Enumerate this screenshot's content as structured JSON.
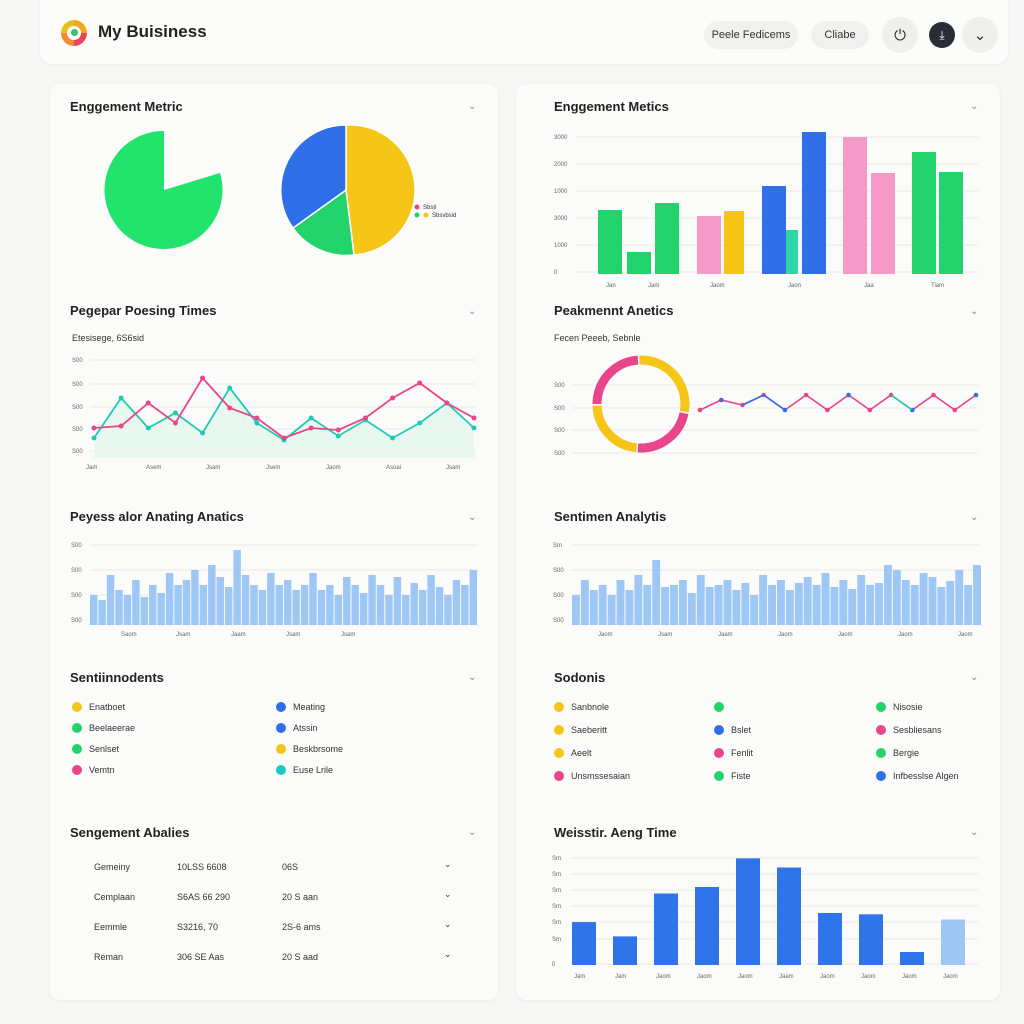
{
  "header": {
    "brand": "My Buisiness",
    "btn1": "Peele Fedicems",
    "btn2": "Cliabe",
    "icon1": "plug-icon",
    "icon2": "download-icon",
    "icon3": "chevron-down-icon"
  },
  "left": {
    "engagement": {
      "title": "Enggement Metric",
      "legend": [
        "Sbsti",
        "Sbsvbsid"
      ]
    },
    "posting": {
      "title": "Pegepar Poesing Times",
      "subtitle": "Etesisege, 6S6sid",
      "yticks": [
        "S00",
        "S00",
        "S00",
        "S00",
        "S00"
      ],
      "xticks": [
        "Jam",
        "Asem",
        "Jsam",
        "Jsem",
        "Jaom",
        "Asoai",
        "Jsam"
      ]
    },
    "anating": {
      "title": "Peyess alor Anating Anatics",
      "yticks": [
        "S00",
        "S00",
        "S00",
        "S00"
      ],
      "xticks": [
        "Saom",
        "Jsam",
        "Jaam",
        "Jsam",
        "Jsam"
      ]
    },
    "senti": {
      "title": "Sentiinnodents",
      "items": [
        {
          "label": "Enatboet",
          "color": "#f5c518"
        },
        {
          "label": "Meating",
          "color": "#2f6fe8"
        },
        {
          "label": "Beelaeerae",
          "color": "#22d36b"
        },
        {
          "label": "Atssin",
          "color": "#2f6fe8"
        },
        {
          "label": "Senlset",
          "color": "#22d36b"
        },
        {
          "label": "Beskbrsome",
          "color": "#f5c518"
        },
        {
          "label": "Vemtn",
          "color": "#e8458a"
        },
        {
          "label": "Euse Lrile",
          "color": "#1dc9c0"
        }
      ]
    },
    "table": {
      "title": "Sengement Abalies",
      "rows": [
        [
          "Gemeiny",
          "10LSS 6608",
          "06S"
        ],
        [
          "Cemplaan",
          "S6AS 66 290",
          "20 S aan"
        ],
        [
          "Eemmle",
          "S3216, 70",
          "2S-6 ams"
        ],
        [
          "Reman",
          "306 SE Aas",
          "20 S aad"
        ]
      ]
    }
  },
  "right": {
    "engagement": {
      "title": "Enggement Metics",
      "yticks": [
        "3000",
        "2000",
        "1000",
        "3000",
        "1000",
        "0"
      ],
      "xticks": [
        "Jan",
        "Jam",
        "Jaom",
        "Jaon",
        "Jaa",
        "Tiam"
      ]
    },
    "peak": {
      "title": "Peakmennt Anetics",
      "subtitle": "Fecen Peeeb, Sebnle",
      "yticks": [
        "S00",
        "S00",
        "S00",
        "S00"
      ]
    },
    "sentiment": {
      "title": "Sentimen Analytis",
      "yticks": [
        "Sm",
        "S00",
        "S00",
        "S00"
      ],
      "xticks": [
        "Jaom",
        "Jsam",
        "Jaam",
        "Jaom",
        "Jaom",
        "Jaom",
        "Jaom"
      ]
    },
    "sodonis": {
      "title": "Sodonis",
      "items": [
        {
          "label": "Sanbnole",
          "color": "#f5c518"
        },
        {
          "label": "",
          "color": "#22d36b"
        },
        {
          "label": "Nisosie",
          "color": "#22d36b"
        },
        {
          "label": "Saeberitt",
          "color": "#f5c518"
        },
        {
          "label": "Bslet",
          "color": "#2f6fe8"
        },
        {
          "label": "Sesbliesans",
          "color": "#e8458a"
        },
        {
          "label": "Aeelt",
          "color": "#f5c518"
        },
        {
          "label": "Fenlit",
          "color": "#e8458a"
        },
        {
          "label": "Bergie",
          "color": "#22d36b"
        },
        {
          "label": "Unsmssesaian",
          "color": "#e8458a"
        },
        {
          "label": "Fiste",
          "color": "#22d36b"
        },
        {
          "label": "Infbesslse Algen",
          "color": "#2f6fe8"
        }
      ]
    },
    "time": {
      "title": "Weisstir. Aeng Time",
      "yticks": [
        "Sm",
        "Sm",
        "Sm",
        "Sm",
        "Sm",
        "Sm",
        "0"
      ],
      "xticks": [
        "Jam",
        "Jam",
        "Jaom",
        "Jaom",
        "Jaom",
        "Jaam",
        "Jaom",
        "Jaom",
        "Jaom",
        "Jaom"
      ]
    }
  },
  "chart_data": [
    {
      "type": "pie",
      "title": "Enggement Metric",
      "slices": [
        {
          "value": 0.85,
          "color": "#22e36b"
        }
      ],
      "note": "single pie with missing wedge"
    },
    {
      "type": "pie",
      "title": "",
      "slices": [
        {
          "label": "Sbsti",
          "value": 50,
          "color": "#f5c518"
        },
        {
          "label": "Sbsvbsid",
          "value": 20,
          "color": "#22d36b"
        },
        {
          "value": 30,
          "color": "#2f6fe8"
        }
      ]
    },
    {
      "type": "bar",
      "title": "Enggement Metics",
      "series": [
        {
          "values": [
            68,
            22,
            71,
            0,
            0,
            0,
            0
          ],
          "color": "#22d36b"
        },
        {
          "values": [
            0,
            0,
            0,
            58,
            63,
            0,
            0
          ],
          "color": "#f5a1c8"
        }
      ]
    },
    {
      "type": "line",
      "title": "Pegepar Poesing Times",
      "series": [
        {
          "values": [
            20,
            60,
            30,
            45,
            25,
            70,
            35,
            18,
            40,
            22,
            38,
            20,
            35,
            55,
            30
          ],
          "color": "#22c9b7"
        },
        {
          "values": [
            30,
            32,
            55,
            35,
            80,
            50,
            40,
            20,
            30,
            28,
            40,
            60,
            75,
            55,
            40
          ],
          "color": "#e8458a"
        }
      ]
    },
    {
      "type": "bar",
      "title": "Peyess alor Anating Anatics",
      "values": [
        30,
        25,
        50,
        35,
        30,
        45,
        28,
        40,
        32,
        52,
        40,
        45,
        55,
        40,
        60,
        48,
        38,
        75,
        50,
        40,
        35,
        52,
        40,
        45,
        35,
        40,
        52,
        35,
        40,
        30,
        48,
        40,
        32,
        50,
        40,
        30,
        48,
        30,
        42,
        35,
        50,
        38,
        30,
        45,
        40,
        55
      ]
    },
    {
      "type": "line",
      "title": "Peakmennt Anetics",
      "series": [
        {
          "values": [
            45,
            55,
            50,
            60,
            45,
            60,
            45,
            60,
            45,
            60,
            45,
            60,
            45,
            60
          ],
          "color": "#e8458a"
        }
      ]
    },
    {
      "type": "bar",
      "title": "Sentimen Analytis",
      "values": [
        30,
        45,
        35,
        40,
        30,
        45,
        35,
        50,
        40,
        65,
        38,
        40,
        45,
        32,
        50,
        38,
        40,
        45,
        35,
        42,
        30,
        50,
        40,
        45,
        35,
        42,
        48,
        40,
        52,
        38,
        45,
        36,
        50,
        40,
        42,
        60,
        55,
        45,
        40,
        52,
        48,
        38,
        44,
        55,
        40,
        60
      ]
    },
    {
      "type": "bar",
      "title": "Weisstir. Aeng Time",
      "values": [
        33,
        22,
        55,
        60,
        82,
        75,
        40,
        39,
        10,
        35
      ]
    }
  ]
}
